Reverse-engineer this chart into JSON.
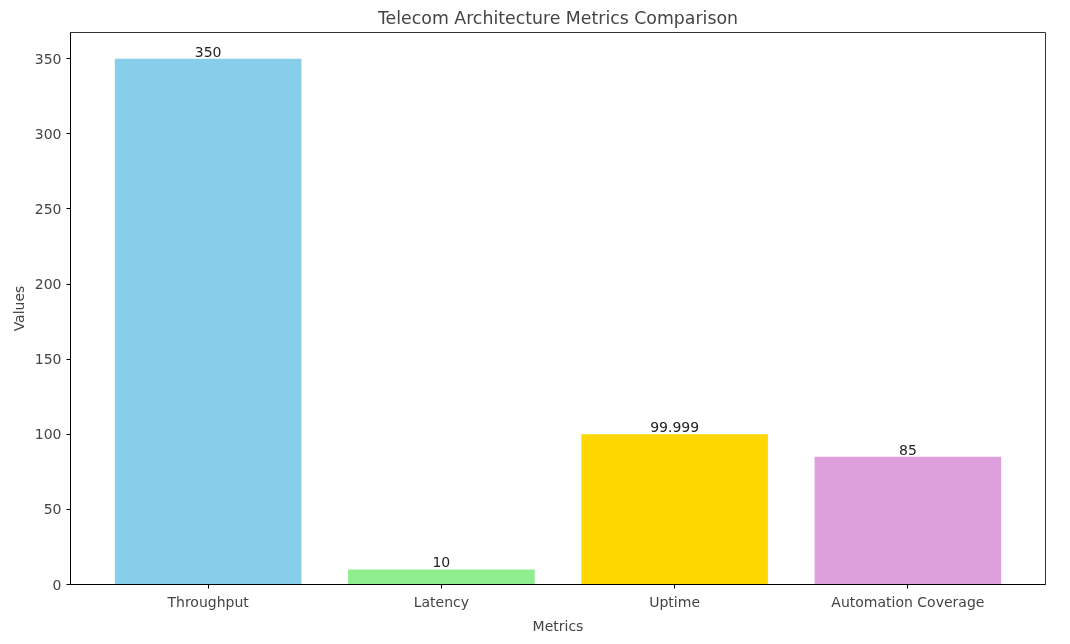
{
  "chart_data": {
    "type": "bar",
    "title": "Telecom Architecture Metrics Comparison",
    "xlabel": "Metrics",
    "ylabel": "Values",
    "categories": [
      "Throughput",
      "Latency",
      "Uptime",
      "Automation Coverage"
    ],
    "values": [
      350,
      10,
      99.999,
      85
    ],
    "colors": [
      "#87ceeb",
      "#90ee90",
      "#ffd700",
      "#dda0dd"
    ],
    "ylim": [
      0,
      367.5
    ],
    "yticks": [
      0,
      50,
      100,
      150,
      200,
      250,
      300,
      350
    ],
    "data_labels": true,
    "grid": false
  }
}
